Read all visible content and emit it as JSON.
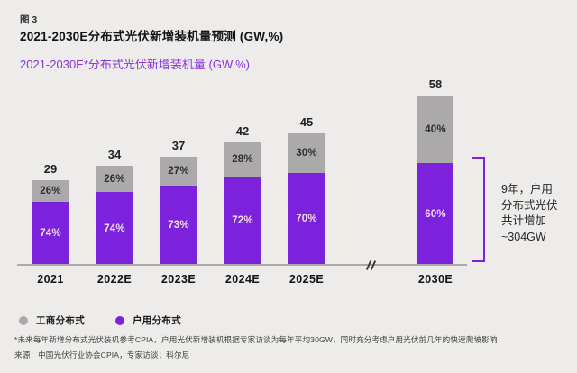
{
  "header": {
    "figure_label": "图 3",
    "title": "2021-2030E分布式光伏新增装机量预测 (GW,%)",
    "subtitle": "2021-2030E*分布式光伏新增装机量 (GW,%)"
  },
  "chart_data": {
    "type": "bar",
    "stacked": true,
    "unit": "GW",
    "title": "2021-2030E分布式光伏新增装机量预测 (GW,%)",
    "categories": [
      "2021",
      "2022E",
      "2023E",
      "2024E",
      "2025E",
      "2030E"
    ],
    "totals_gw": [
      29,
      34,
      37,
      42,
      45,
      58
    ],
    "series": [
      {
        "name": "工商分布式",
        "color": "#ABA9A9",
        "share_pct": [
          26,
          26,
          27,
          28,
          30,
          40
        ]
      },
      {
        "name": "户用分布式",
        "color": "#7C22DC",
        "share_pct": [
          74,
          74,
          73,
          72,
          70,
          60
        ]
      }
    ],
    "axis_break_between": [
      "2025E",
      "2030E"
    ],
    "legend_position": "bottom-left",
    "grid": false,
    "annotation": "9年，户用分布式光伏共计增加~304GW"
  },
  "annotation": {
    "lines": [
      "9年，户用",
      "分布式光伏",
      "共计增加",
      "~304GW"
    ]
  },
  "legend": {
    "items": [
      {
        "label": "工商分布式",
        "color": "#ABA9A9"
      },
      {
        "label": "户用分布式",
        "color": "#7C22DC"
      }
    ]
  },
  "footnotes": {
    "note": "*未来每年新增分布式光伏装机参考CPIA，户用光伏新增装机根据专家访谈为每年平均30GW，同时充分考虑户用光伏前几年的快速爬坡影响",
    "source": "来源：中国光伏行业协会CPIA，专家访谈；科尔尼"
  },
  "colors": {
    "background": "#EDECEA",
    "household_purple": "#7C22DC",
    "commercial_gray": "#ABA9A9",
    "subtitle_purple": "#8B33DD",
    "axis_gray": "#ACAAA7",
    "label_on_purple": "#F1DCF1"
  }
}
